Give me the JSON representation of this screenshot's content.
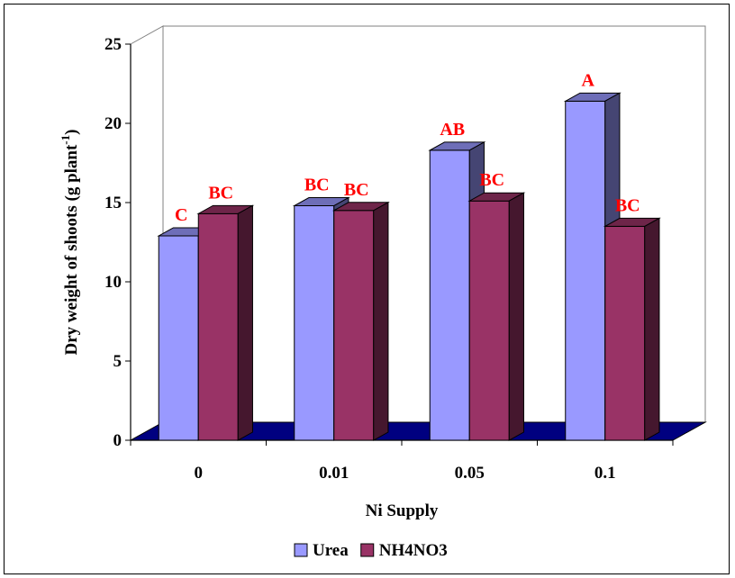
{
  "chart_data": {
    "type": "bar",
    "style": "3d-clustered-column",
    "categories": [
      "0",
      "0.01",
      "0.05",
      "0.1"
    ],
    "series": [
      {
        "name": "Urea",
        "values": [
          12.9,
          14.8,
          18.3,
          21.4
        ],
        "color": "#9999ff",
        "labels": [
          "C",
          "BC",
          "AB",
          "A"
        ]
      },
      {
        "name": "NH4NO3",
        "values": [
          14.3,
          14.5,
          15.1,
          13.5
        ],
        "color": "#993366",
        "labels": [
          "BC",
          "BC",
          "BC",
          "BC"
        ]
      }
    ],
    "xlabel": "Ni Supply",
    "ylabel": {
      "main": "Dry weight of shoots (g plant",
      "superscript": "-1",
      "close": ")"
    },
    "ylim": [
      0,
      25
    ],
    "yticks": [
      "0",
      "5",
      "10",
      "15",
      "20",
      "25"
    ],
    "grid": false,
    "floor_color": "#000080",
    "label_color": "#ff0000",
    "legend_position": "bottom"
  }
}
